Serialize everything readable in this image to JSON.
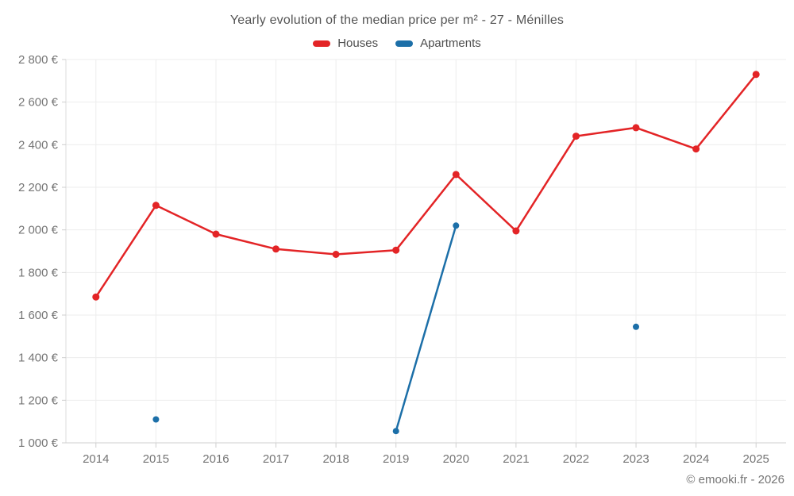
{
  "header": {
    "title": "Yearly evolution of the median price per m² - 27 - Ménilles"
  },
  "legend": {
    "items": [
      {
        "label": "Houses",
        "color": "#e32426"
      },
      {
        "label": "Apartments",
        "color": "#1c6fa8"
      }
    ]
  },
  "footer": {
    "copyright": "© emooki.fr - 2026"
  },
  "chart_data": {
    "type": "line",
    "title": "Yearly evolution of the median price per m² - 27 - Ménilles",
    "categories": [
      "2014",
      "2015",
      "2016",
      "2017",
      "2018",
      "2019",
      "2020",
      "2021",
      "2022",
      "2023",
      "2024",
      "2025"
    ],
    "series": [
      {
        "name": "Houses",
        "color": "#e32426",
        "values": [
          1685,
          2115,
          1980,
          1910,
          1885,
          1905,
          2260,
          1995,
          2440,
          2480,
          2380,
          2730
        ]
      },
      {
        "name": "Apartments",
        "color": "#1c6fa8",
        "values": [
          null,
          1110,
          null,
          null,
          null,
          1055,
          2020,
          null,
          null,
          1545,
          null,
          null
        ]
      }
    ],
    "ylim": [
      1000,
      2800
    ],
    "ytick_step": 200,
    "yaxis_tick_labels": [
      "1 000 €",
      "1 200 €",
      "1 400 €",
      "1 600 €",
      "1 800 €",
      "2 000 €",
      "2 200 €",
      "2 400 €",
      "2 600 €",
      "2 800 €"
    ],
    "grid": true,
    "legend_position": "top",
    "colors": {
      "gridline": "#ededed",
      "axis": "#cfcfcf",
      "tick_label": "#757575"
    }
  }
}
